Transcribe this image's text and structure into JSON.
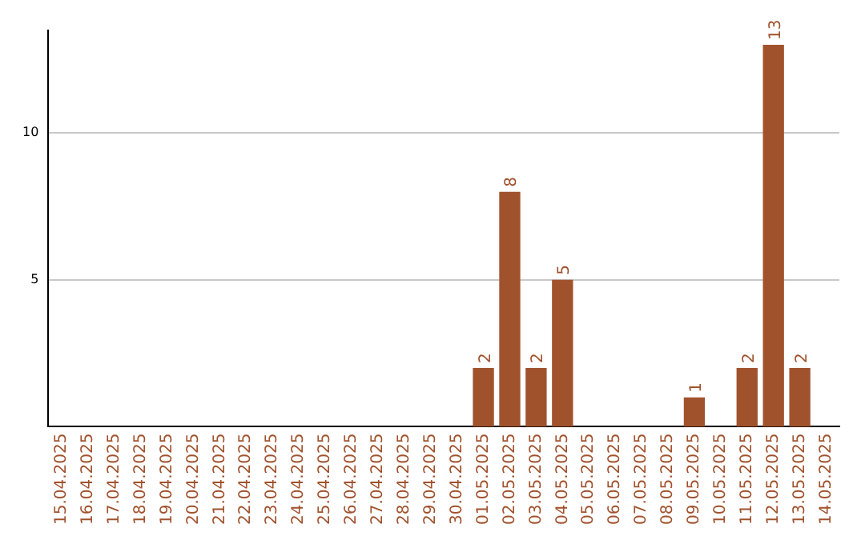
{
  "chart_data": {
    "type": "bar",
    "categories": [
      "15.04.2025",
      "16.04.2025",
      "17.04.2025",
      "18.04.2025",
      "19.04.2025",
      "20.04.2025",
      "21.04.2025",
      "22.04.2025",
      "23.04.2025",
      "24.04.2025",
      "25.04.2025",
      "26.04.2025",
      "27.04.2025",
      "28.04.2025",
      "29.04.2025",
      "30.04.2025",
      "01.05.2025",
      "02.05.2025",
      "03.05.2025",
      "04.05.2025",
      "05.05.2025",
      "06.05.2025",
      "07.05.2025",
      "08.05.2025",
      "09.05.2025",
      "10.05.2025",
      "11.05.2025",
      "12.05.2025",
      "13.05.2025",
      "14.05.2025"
    ],
    "values": [
      0,
      0,
      0,
      0,
      0,
      0,
      0,
      0,
      0,
      0,
      0,
      0,
      0,
      0,
      0,
      0,
      2,
      8,
      2,
      5,
      0,
      0,
      0,
      0,
      1,
      0,
      2,
      13,
      2,
      0
    ],
    "value_labels": [
      null,
      null,
      null,
      null,
      null,
      null,
      null,
      null,
      null,
      null,
      null,
      null,
      null,
      null,
      null,
      null,
      "2",
      "8",
      "2",
      "5",
      null,
      null,
      null,
      null,
      "1",
      null,
      "2",
      "13",
      "2",
      null
    ],
    "color": "#a0522d",
    "ylim": [
      0,
      13.5
    ],
    "yticks": [
      5,
      10
    ],
    "grid": "y",
    "legend": false
  }
}
